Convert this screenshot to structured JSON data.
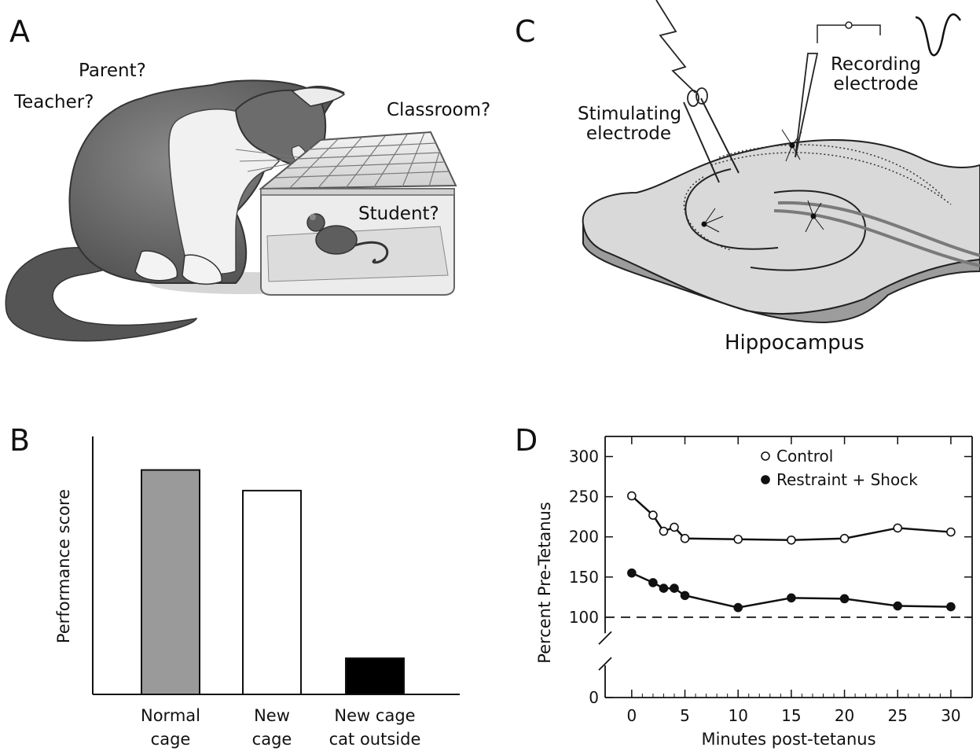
{
  "panels": {
    "a": {
      "letter": "A",
      "labels": {
        "parent": "Parent?",
        "teacher": "Teacher?",
        "classroom": "Classroom?",
        "student": "Student?"
      }
    },
    "c": {
      "letter": "C",
      "labels": {
        "stimulating": "Stimulating electrode",
        "recording": "Recording electrode",
        "title": "Hippocampus"
      }
    },
    "b": {
      "letter": "B"
    },
    "d": {
      "letter": "D"
    }
  },
  "chart_data": [
    {
      "type": "bar",
      "ylabel": "Performance score",
      "categories": [
        "Normal cage",
        "New cage",
        "New cage cat outside"
      ],
      "category_lines": [
        [
          "Normal",
          "cage"
        ],
        [
          "New",
          "cage"
        ],
        [
          "New cage",
          "cat outside"
        ]
      ],
      "values": [
        0.87,
        0.79,
        0.14
      ],
      "colors": [
        "#9a9a9a",
        "#ffffff",
        "#000000"
      ],
      "ylim": [
        0,
        1
      ]
    },
    {
      "type": "line",
      "xlabel": "Minutes post-tetanus",
      "ylabel": "Percent Pre-Tetanus",
      "xticks": [
        0,
        5,
        10,
        15,
        20,
        25,
        30
      ],
      "yticks": [
        0,
        100,
        150,
        200,
        250,
        300
      ],
      "xlim": [
        -2.5,
        32
      ],
      "ylim": [
        0,
        325
      ],
      "axis_break": true,
      "baseline": 100,
      "legend_position": "top-right",
      "series": [
        {
          "name": "Control",
          "marker": "open-circle",
          "x": [
            0,
            2,
            3,
            4,
            5,
            10,
            15,
            20,
            25,
            30
          ],
          "y": [
            251,
            227,
            207,
            212,
            198,
            197,
            196,
            198,
            211,
            206
          ]
        },
        {
          "name": "Restraint + Shock",
          "marker": "filled-circle",
          "x": [
            0,
            2,
            3,
            4,
            5,
            10,
            15,
            20,
            25,
            30
          ],
          "y": [
            155,
            143,
            136,
            136,
            127,
            112,
            124,
            123,
            114,
            113
          ]
        }
      ]
    }
  ]
}
